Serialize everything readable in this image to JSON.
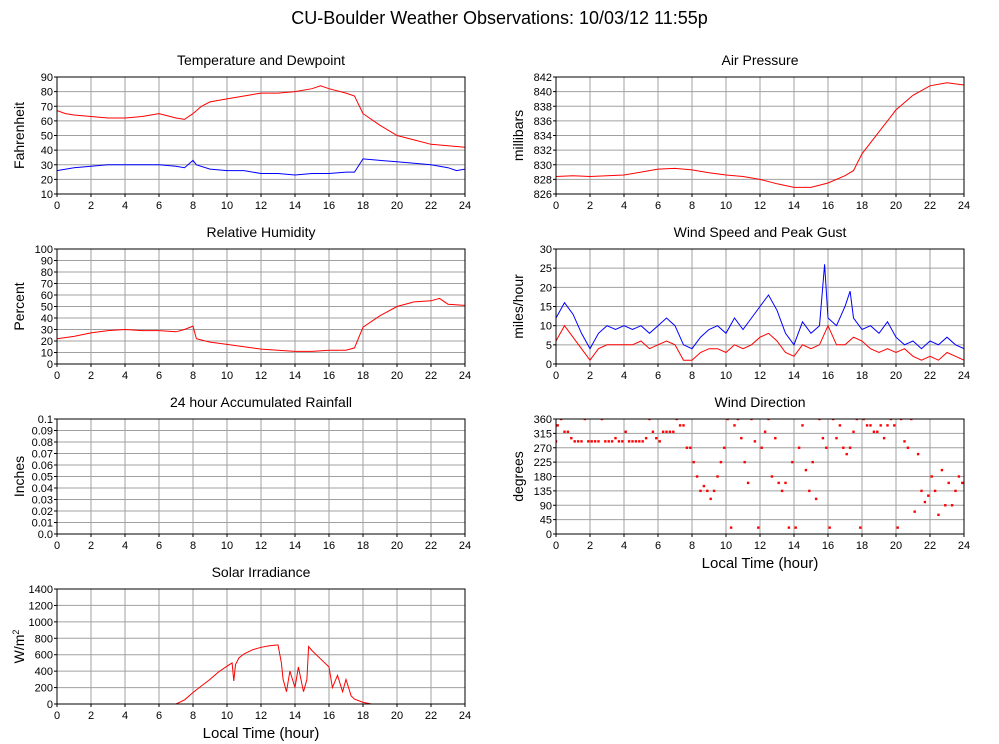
{
  "page": {
    "title": "CU-Boulder Weather Observations: 10/03/12 11:55p"
  },
  "colors": {
    "series1": "#ff0000",
    "series2": "#0000ff",
    "grid": "#a0a0a0",
    "frame": "#000000"
  },
  "chart_data": [
    {
      "id": "temp",
      "type": "line",
      "title": "Temperature and Dewpoint",
      "ylabel": "Fahrenheit",
      "xlabel": "",
      "xlim": [
        0,
        24
      ],
      "xticks": [
        0,
        2,
        4,
        6,
        8,
        10,
        12,
        14,
        16,
        18,
        20,
        22,
        24
      ],
      "ylim": [
        10,
        90
      ],
      "yticks": [
        10,
        20,
        30,
        40,
        50,
        60,
        70,
        80,
        90
      ],
      "grid": true,
      "series": [
        {
          "color": "#ff0000",
          "x": [
            0,
            0.5,
            1,
            2,
            3,
            4,
            5,
            6,
            7,
            7.5,
            8,
            8.5,
            9,
            10,
            11,
            12,
            13,
            14,
            15,
            15.5,
            16,
            17,
            17.5,
            18,
            19,
            20,
            21,
            22,
            23,
            24
          ],
          "y": [
            67,
            65,
            64,
            63,
            62,
            62,
            63,
            65,
            62,
            61,
            65,
            70,
            73,
            75,
            77,
            79,
            79,
            80,
            82,
            84,
            82,
            79,
            77,
            65,
            57,
            50,
            47,
            44,
            43,
            42
          ]
        },
        {
          "color": "#0000ff",
          "x": [
            0,
            1,
            2,
            3,
            4,
            5,
            6,
            7,
            7.5,
            8,
            8.2,
            9,
            10,
            11,
            12,
            13,
            14,
            15,
            16,
            17,
            17.5,
            18,
            19,
            20,
            21,
            22,
            23,
            23.5,
            24
          ],
          "y": [
            26,
            28,
            29,
            30,
            30,
            30,
            30,
            29,
            28,
            33,
            30,
            27,
            26,
            26,
            24,
            24,
            23,
            24,
            24,
            25,
            25,
            34,
            33,
            32,
            31,
            30,
            28,
            26,
            27
          ]
        }
      ]
    },
    {
      "id": "pressure",
      "type": "line",
      "title": "Air Pressure",
      "ylabel": "millibars",
      "xlabel": "",
      "xlim": [
        0,
        24
      ],
      "xticks": [
        0,
        2,
        4,
        6,
        8,
        10,
        12,
        14,
        16,
        18,
        20,
        22,
        24
      ],
      "ylim": [
        826,
        842
      ],
      "yticks": [
        826,
        828,
        830,
        832,
        834,
        836,
        838,
        840,
        842
      ],
      "grid": true,
      "series": [
        {
          "color": "#ff0000",
          "x": [
            0,
            1,
            2,
            3,
            4,
            5,
            6,
            7,
            8,
            9,
            10,
            11,
            12,
            13,
            14,
            15,
            16,
            17,
            17.5,
            18,
            18.5,
            19,
            20,
            21,
            22,
            23,
            24
          ],
          "y": [
            828.4,
            828.5,
            828.4,
            828.5,
            828.6,
            829.0,
            829.4,
            829.5,
            829.3,
            828.9,
            828.6,
            828.4,
            828.0,
            827.4,
            826.9,
            826.9,
            827.5,
            828.5,
            829.2,
            831.5,
            833.0,
            834.5,
            837.5,
            839.5,
            840.8,
            841.2,
            840.9
          ]
        }
      ]
    },
    {
      "id": "humidity",
      "type": "line",
      "title": "Relative Humidity",
      "ylabel": "Percent",
      "xlabel": "",
      "xlim": [
        0,
        24
      ],
      "xticks": [
        0,
        2,
        4,
        6,
        8,
        10,
        12,
        14,
        16,
        18,
        20,
        22,
        24
      ],
      "ylim": [
        0,
        100
      ],
      "yticks": [
        0,
        10,
        20,
        30,
        40,
        50,
        60,
        70,
        80,
        90,
        100
      ],
      "grid": true,
      "series": [
        {
          "color": "#ff0000",
          "x": [
            0,
            1,
            2,
            3,
            4,
            5,
            6,
            7,
            7.5,
            8,
            8.2,
            9,
            10,
            11,
            12,
            13,
            14,
            15,
            16,
            17,
            17.5,
            18,
            19,
            20,
            21,
            22,
            22.5,
            23,
            24
          ],
          "y": [
            22,
            24,
            27,
            29,
            30,
            29,
            29,
            28,
            30,
            33,
            22,
            19,
            17,
            15,
            13,
            12,
            11,
            11,
            12,
            12,
            14,
            32,
            42,
            50,
            54,
            55,
            57,
            52,
            51
          ]
        }
      ]
    },
    {
      "id": "wind",
      "type": "line",
      "title": "Wind Speed and Peak Gust",
      "ylabel": "miles/hour",
      "xlabel": "",
      "xlim": [
        0,
        24
      ],
      "xticks": [
        0,
        2,
        4,
        6,
        8,
        10,
        12,
        14,
        16,
        18,
        20,
        22,
        24
      ],
      "ylim": [
        0,
        30
      ],
      "yticks": [
        0,
        5,
        10,
        15,
        20,
        25,
        30
      ],
      "grid": true,
      "series": [
        {
          "color": "#0000ff",
          "x": [
            0,
            0.5,
            1,
            1.5,
            2,
            2.5,
            3,
            3.5,
            4,
            4.5,
            5,
            5.5,
            6,
            6.5,
            7,
            7.5,
            8,
            8.5,
            9,
            9.5,
            10,
            10.5,
            11,
            11.5,
            12,
            12.5,
            13,
            13.5,
            14,
            14.5,
            15,
            15.5,
            15.8,
            16,
            16.5,
            17,
            17.3,
            17.5,
            18,
            18.5,
            19,
            19.5,
            20,
            20.5,
            21,
            21.5,
            22,
            22.5,
            23,
            23.5,
            24
          ],
          "y": [
            12,
            16,
            13,
            8,
            4,
            8,
            10,
            9,
            10,
            9,
            10,
            8,
            10,
            12,
            10,
            5,
            4,
            7,
            9,
            10,
            8,
            12,
            9,
            12,
            15,
            18,
            14,
            8,
            5,
            11,
            8,
            10,
            26,
            12,
            10,
            15,
            19,
            12,
            9,
            10,
            8,
            11,
            7,
            5,
            6,
            4,
            6,
            5,
            7,
            5,
            4
          ]
        },
        {
          "color": "#ff0000",
          "x": [
            0,
            0.5,
            1,
            1.5,
            2,
            2.5,
            3,
            3.5,
            4,
            4.5,
            5,
            5.5,
            6,
            6.5,
            7,
            7.5,
            8,
            8.5,
            9,
            9.5,
            10,
            10.5,
            11,
            11.5,
            12,
            12.5,
            13,
            13.5,
            14,
            14.5,
            15,
            15.5,
            16,
            16.5,
            17,
            17.5,
            18,
            18.5,
            19,
            19.5,
            20,
            20.5,
            21,
            21.5,
            22,
            22.5,
            23,
            23.5,
            24
          ],
          "y": [
            6,
            10,
            7,
            4,
            1,
            4,
            5,
            5,
            5,
            5,
            6,
            4,
            5,
            6,
            5,
            1,
            1,
            3,
            4,
            4,
            3,
            5,
            4,
            5,
            7,
            8,
            6,
            3,
            2,
            5,
            4,
            5,
            10,
            5,
            5,
            7,
            6,
            4,
            3,
            4,
            3,
            4,
            2,
            1,
            2,
            1,
            3,
            2,
            1
          ]
        }
      ]
    },
    {
      "id": "rain",
      "type": "line",
      "title": "24 hour Accumulated Rainfall",
      "ylabel": "Inches",
      "xlabel": "",
      "xlim": [
        0,
        24
      ],
      "xticks": [
        0,
        2,
        4,
        6,
        8,
        10,
        12,
        14,
        16,
        18,
        20,
        22,
        24
      ],
      "ylim": [
        0,
        0.1
      ],
      "yticks": [
        0.0,
        0.01,
        0.02,
        0.03,
        0.04,
        0.05,
        0.06,
        0.07,
        0.08,
        0.09,
        0.1
      ],
      "ytick_labels": [
        "0.0",
        "0.01",
        "0.02",
        "0.03",
        "0.04",
        "0.05",
        "0.06",
        "0.07",
        "0.08",
        "0.09",
        "0.1"
      ],
      "grid": true,
      "series": [
        {
          "color": "#ff0000",
          "x": [
            0,
            24
          ],
          "y": [
            0,
            0
          ]
        }
      ]
    },
    {
      "id": "winddir",
      "type": "scatter",
      "title": "Wind Direction",
      "ylabel": "degrees",
      "xlabel": "Local Time (hour)",
      "xlim": [
        0,
        24
      ],
      "xticks": [
        0,
        2,
        4,
        6,
        8,
        10,
        12,
        14,
        16,
        18,
        20,
        22,
        24
      ],
      "ylim": [
        0,
        360
      ],
      "yticks": [
        0,
        45,
        90,
        135,
        180,
        225,
        270,
        315,
        360
      ],
      "grid": true,
      "series": [
        {
          "color": "#ff0000",
          "x": [
            0,
            0.1,
            0.3,
            0.5,
            0.7,
            0.9,
            1.1,
            1.3,
            1.5,
            1.7,
            1.9,
            2.1,
            2.3,
            2.5,
            2.7,
            2.9,
            3.1,
            3.3,
            3.5,
            3.7,
            3.9,
            4.1,
            4.3,
            4.5,
            4.7,
            4.9,
            5.1,
            5.3,
            5.5,
            5.7,
            5.9,
            6.1,
            6.3,
            6.5,
            6.7,
            6.9,
            7.1,
            7.3,
            7.5,
            7.7,
            7.9,
            8.1,
            8.3,
            8.5,
            8.7,
            8.9,
            9.1,
            9.3,
            9.5,
            9.7,
            9.9,
            10.1,
            10.3,
            10.5,
            10.7,
            10.9,
            11.1,
            11.3,
            11.5,
            11.7,
            11.9,
            12.1,
            12.3,
            12.5,
            12.7,
            12.9,
            13.1,
            13.3,
            13.5,
            13.7,
            13.9,
            14.1,
            14.3,
            14.5,
            14.7,
            14.9,
            15.1,
            15.3,
            15.5,
            15.7,
            15.9,
            16.1,
            16.3,
            16.5,
            16.7,
            16.9,
            17.1,
            17.3,
            17.5,
            17.7,
            17.9,
            18.1,
            18.3,
            18.5,
            18.7,
            18.9,
            19.1,
            19.3,
            19.5,
            19.7,
            19.9,
            20.1,
            20.3,
            20.5,
            20.7,
            20.9,
            21.1,
            21.3,
            21.5,
            21.7,
            21.9,
            22.1,
            22.3,
            22.5,
            22.7,
            22.9,
            23.1,
            23.3,
            23.5,
            23.7,
            23.9
          ],
          "y": [
            290,
            340,
            360,
            320,
            320,
            300,
            290,
            290,
            290,
            360,
            290,
            290,
            290,
            290,
            360,
            290,
            290,
            290,
            300,
            290,
            290,
            320,
            290,
            290,
            290,
            290,
            290,
            300,
            360,
            320,
            300,
            290,
            320,
            320,
            320,
            320,
            360,
            340,
            340,
            270,
            270,
            225,
            180,
            135,
            150,
            135,
            110,
            135,
            180,
            225,
            270,
            360,
            20,
            340,
            360,
            300,
            225,
            160,
            360,
            290,
            20,
            270,
            320,
            360,
            180,
            300,
            160,
            135,
            160,
            20,
            225,
            20,
            270,
            340,
            200,
            135,
            225,
            110,
            360,
            300,
            270,
            20,
            360,
            300,
            340,
            270,
            250,
            270,
            320,
            360,
            20,
            360,
            340,
            340,
            320,
            320,
            340,
            300,
            340,
            360,
            340,
            20,
            360,
            290,
            270,
            360,
            70,
            250,
            135,
            100,
            120,
            180,
            135,
            60,
            200,
            90,
            160,
            90,
            135,
            180,
            160
          ]
        }
      ]
    },
    {
      "id": "solar",
      "type": "line",
      "title": "Solar Irradiance",
      "ylabel": "W/m",
      "ylabel_sup": "2",
      "xlabel": "Local Time (hour)",
      "xlim": [
        0,
        24
      ],
      "xticks": [
        0,
        2,
        4,
        6,
        8,
        10,
        12,
        14,
        16,
        18,
        20,
        22,
        24
      ],
      "ylim": [
        0,
        1400
      ],
      "yticks": [
        0,
        200,
        400,
        600,
        800,
        1000,
        1200,
        1400
      ],
      "grid": true,
      "series": [
        {
          "color": "#ff0000",
          "x": [
            0,
            7,
            7.5,
            8,
            8.5,
            9,
            9.5,
            10,
            10.3,
            10.4,
            10.5,
            10.7,
            11,
            11.5,
            12,
            12.5,
            13,
            13.2,
            13.3,
            13.5,
            13.7,
            14,
            14.2,
            14.5,
            14.7,
            14.8,
            15,
            15.5,
            16,
            16.2,
            16.5,
            16.8,
            17,
            17.3,
            17.5,
            18,
            18.5,
            24
          ],
          "y": [
            0,
            0,
            50,
            140,
            220,
            300,
            390,
            460,
            500,
            280,
            480,
            560,
            610,
            660,
            690,
            710,
            720,
            500,
            300,
            150,
            400,
            200,
            450,
            150,
            300,
            700,
            650,
            550,
            450,
            200,
            350,
            150,
            300,
            100,
            60,
            20,
            0,
            0
          ]
        }
      ]
    }
  ]
}
